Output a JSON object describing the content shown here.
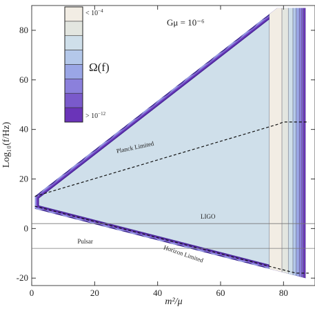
{
  "chart_data": {
    "type": "contour",
    "title": "Gμ = 10⁻⁶",
    "xlabel": "m²/μ",
    "ylabel": "Log₁₀(f/Hz)",
    "xlim": [
      0,
      90
    ],
    "ylim": [
      -23,
      90
    ],
    "xticks": [
      0,
      20,
      40,
      60,
      80
    ],
    "yticks": [
      -20,
      0,
      20,
      40,
      60,
      80
    ],
    "legend": {
      "title": "Ω(f)",
      "top_label_prefix": "< 10",
      "top_label_exp": "−4",
      "bottom_label_prefix": "> 10",
      "bottom_label_exp": "−12",
      "placement": "top-left",
      "colors": [
        "#f2ede4",
        "#e3e6e0",
        "#cfdfea",
        "#b4c8ea",
        "#9aa6e6",
        "#8b80dc",
        "#7a5acb",
        "#6a34b8"
      ]
    },
    "region": {
      "vertices": [
        [
          1,
          13
        ],
        [
          78,
          89
        ],
        [
          87,
          89
        ],
        [
          87,
          -20
        ],
        [
          1,
          8
        ]
      ],
      "fill_color": "#cfdfea",
      "edge_colors": [
        "#4a2a9a",
        "#6a34b8",
        "#7a5acb",
        "#8b80dc",
        "#9aa6e6"
      ],
      "vertical_bands": [
        {
          "x_start": 75.5,
          "x_end": 79.5,
          "color": "#f2ede4"
        },
        {
          "x_start": 79.5,
          "x_end": 81.5,
          "color": "#e3e6e0"
        },
        {
          "x_start": 81.5,
          "x_end": 83.0,
          "color": "#cfdfea"
        },
        {
          "x_start": 83.0,
          "x_end": 84.0,
          "color": "#b4c8ea"
        },
        {
          "x_start": 84.0,
          "x_end": 85.0,
          "color": "#9aa6e6"
        },
        {
          "x_start": 85.0,
          "x_end": 85.8,
          "color": "#8b80dc"
        },
        {
          "x_start": 85.8,
          "x_end": 86.4,
          "color": "#7a5acb"
        },
        {
          "x_start": 86.4,
          "x_end": 87.0,
          "color": "#6a34b8"
        }
      ]
    },
    "lines": [
      {
        "name": "Planck Limited",
        "style": "dashed",
        "points": [
          [
            1,
            13
          ],
          [
            78,
            42
          ],
          [
            80,
            43
          ],
          [
            88,
            43
          ]
        ]
      },
      {
        "name": "Horizon Limited",
        "style": "dashed",
        "points": [
          [
            1,
            9
          ],
          [
            84,
            -18
          ],
          [
            88,
            -18
          ]
        ]
      },
      {
        "name": "LIGO",
        "style": "solid",
        "points": [
          [
            0,
            2
          ],
          [
            90,
            2
          ]
        ]
      },
      {
        "name": "Pulsar",
        "style": "solid",
        "points": [
          [
            0,
            -8
          ],
          [
            90,
            -8
          ]
        ]
      }
    ],
    "annotations": [
      {
        "text": "Planck Limited",
        "x": 33,
        "y": 32,
        "angle": -12
      },
      {
        "text": "Horizon Limited",
        "x": 48,
        "y": -11,
        "angle": 19
      },
      {
        "text": "LIGO",
        "x": 56,
        "y": 4,
        "angle": 0
      },
      {
        "text": "Pulsar",
        "x": 17,
        "y": -6,
        "angle": 0
      }
    ]
  }
}
